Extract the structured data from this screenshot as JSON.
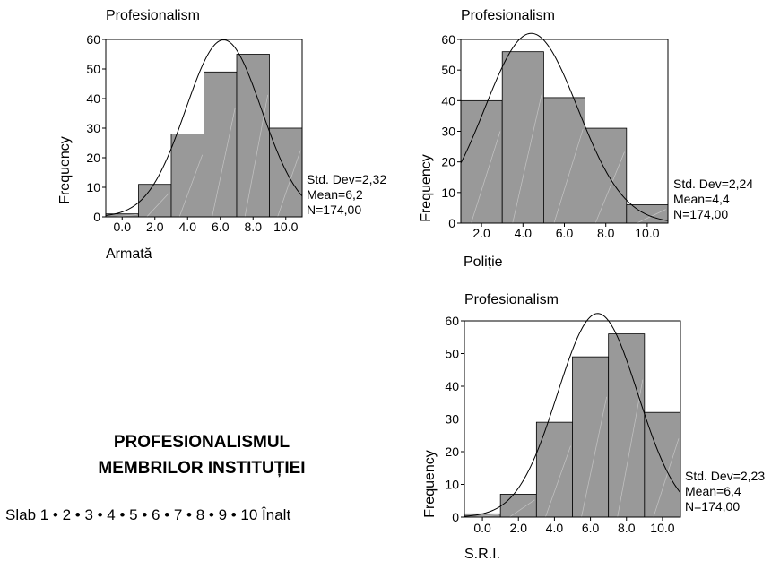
{
  "caption": {
    "line1": "PROFESIONALISMUL",
    "line2": "MEMBRILOR INSTITUȚIEI",
    "scale": "Slab  1 • 2 • 3 • 4 • 5 • 6 • 7 • 8 • 9 • 10  Înalt"
  },
  "colors": {
    "bar": "#999999",
    "curve": "#000000"
  },
  "chart_data": [
    {
      "type": "bar",
      "title": "Profesionalism",
      "xlabel": "Armată",
      "ylabel": "Frequency",
      "categories": [
        "0.0",
        "2.0",
        "4.0",
        "6.0",
        "8.0",
        "10.0"
      ],
      "values": [
        1,
        11,
        28,
        49,
        55,
        30
      ],
      "bin_width": 2,
      "ylim": [
        0,
        60
      ],
      "yticks": [
        "0",
        "10",
        "20",
        "30",
        "40",
        "50",
        "60"
      ],
      "normal_curve": {
        "mean": 6.2,
        "std": 2.32,
        "n": 174
      },
      "stats": [
        "Std. Dev=2,32",
        "Mean=6,2",
        "N=174,00"
      ],
      "grid": false
    },
    {
      "type": "bar",
      "title": "Profesionalism",
      "xlabel": "Poliție",
      "ylabel": "Frequency",
      "categories": [
        "2.0",
        "4.0",
        "6.0",
        "8.0",
        "10.0"
      ],
      "values": [
        40,
        56,
        41,
        31,
        6
      ],
      "bin_width": 2,
      "ylim": [
        0,
        60
      ],
      "yticks": [
        "0",
        "10",
        "20",
        "30",
        "40",
        "50",
        "60"
      ],
      "normal_curve": {
        "mean": 4.4,
        "std": 2.24,
        "n": 174
      },
      "stats": [
        "Std. Dev=2,24",
        "Mean=4,4",
        "N=174,00"
      ],
      "grid": false
    },
    {
      "type": "bar",
      "title": "Profesionalism",
      "xlabel": "S.R.I.",
      "ylabel": "Frequency",
      "categories": [
        "0.0",
        "2.0",
        "4.0",
        "6.0",
        "8.0",
        "10.0"
      ],
      "values": [
        1,
        7,
        29,
        49,
        56,
        32
      ],
      "bin_width": 2,
      "ylim": [
        0,
        60
      ],
      "yticks": [
        "0",
        "10",
        "20",
        "30",
        "40",
        "50",
        "60"
      ],
      "normal_curve": {
        "mean": 6.4,
        "std": 2.23,
        "n": 174
      },
      "stats": [
        "Std. Dev=2,23",
        "Mean=6,4",
        "N=174,00"
      ],
      "grid": false
    }
  ]
}
